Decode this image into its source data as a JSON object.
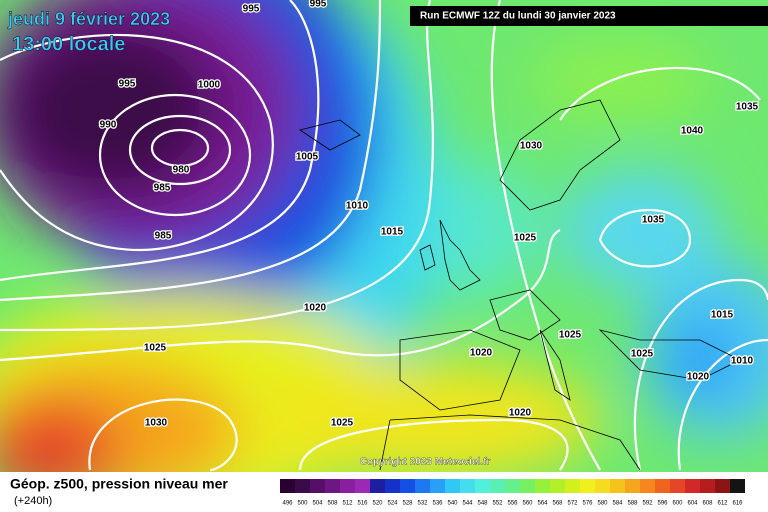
{
  "header": {
    "date": "jeudi 9 février 2023",
    "time": "13:00 locale",
    "run": "Run ECMWF 12Z du lundi 30 janvier 2023"
  },
  "isobar_labels": [
    "995",
    "995",
    "995",
    "1000",
    "990",
    "980",
    "985",
    "985",
    "1005",
    "1010",
    "1015",
    "1020",
    "1025",
    "1030",
    "1025",
    "1020",
    "1020",
    "1025",
    "1030",
    "1040",
    "1035",
    "1035",
    "1025",
    "1025",
    "1015",
    "1010",
    "1020"
  ],
  "copyright": "Copyright 2023 Meteociel.fr",
  "footer": {
    "title": "Géop. z500, pression niveau mer",
    "lead": "(+240h)"
  },
  "legend": {
    "labels": [
      496,
      500,
      504,
      508,
      512,
      516,
      520,
      524,
      528,
      532,
      536,
      540,
      544,
      548,
      552,
      556,
      560,
      564,
      568,
      572,
      576,
      580,
      584,
      588,
      592,
      596,
      600,
      604,
      608,
      612,
      616
    ],
    "colors": [
      "#2a0030",
      "#3c0a48",
      "#550f66",
      "#6e1684",
      "#8a1ea0",
      "#9c28b4",
      "#1e1ea0",
      "#1432c8",
      "#1450e6",
      "#1e78f0",
      "#28a0f5",
      "#32c8f5",
      "#46dcf0",
      "#50f0dc",
      "#5af0b4",
      "#64f08c",
      "#78f064",
      "#96f03c",
      "#b4f028",
      "#d2f01e",
      "#f0f01e",
      "#f5dc1e",
      "#f5c31e",
      "#f5a51e",
      "#f5871e",
      "#f0641e",
      "#e64628",
      "#d22828",
      "#b41e1e",
      "#8c1414",
      "#141414"
    ]
  }
}
